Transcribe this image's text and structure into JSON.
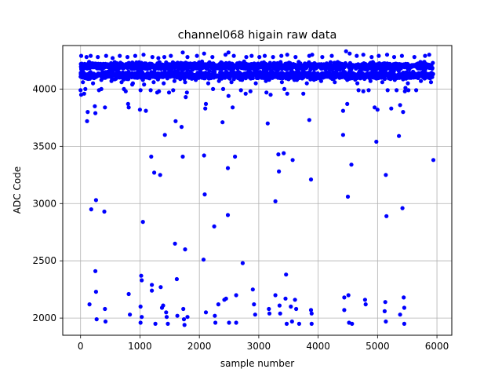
{
  "chart_data": {
    "type": "scatter",
    "title": "channel068 higain raw data",
    "xlabel": "sample number",
    "ylabel": "ADC Code",
    "xlim": [
      -300,
      6250
    ],
    "ylim": [
      1850,
      4380
    ],
    "x_ticks": [
      0,
      1000,
      2000,
      3000,
      4000,
      5000,
      6000
    ],
    "y_ticks": [
      2000,
      2500,
      3000,
      3500,
      4000
    ],
    "grid": true,
    "legend": "none",
    "colors": {
      "marker": "#0000ff",
      "grid": "#b0b0b0",
      "axes": "#000000"
    },
    "band": {
      "description": "dense cluster of samples spanning all sample numbers",
      "x_range": [
        0,
        5940
      ],
      "y_range": [
        4040,
        4300
      ],
      "centers": [
        4120,
        4200
      ]
    },
    "points": [
      [
        0,
        3990
      ],
      [
        10,
        3950
      ],
      [
        60,
        3960
      ],
      [
        80,
        4000
      ],
      [
        110,
        3720
      ],
      [
        120,
        3800
      ],
      [
        150,
        2120
      ],
      [
        180,
        2950
      ],
      [
        240,
        3850
      ],
      [
        260,
        3030
      ],
      [
        250,
        2410
      ],
      [
        260,
        2230
      ],
      [
        270,
        1990
      ],
      [
        250,
        3790
      ],
      [
        310,
        3990
      ],
      [
        350,
        4000
      ],
      [
        400,
        2930
      ],
      [
        410,
        3840
      ],
      [
        410,
        2080
      ],
      [
        420,
        1970
      ],
      [
        730,
        4000
      ],
      [
        760,
        3980
      ],
      [
        800,
        3870
      ],
      [
        810,
        3840
      ],
      [
        810,
        2210
      ],
      [
        830,
        2030
      ],
      [
        870,
        4040
      ],
      [
        1000,
        3820
      ],
      [
        1010,
        3990
      ],
      [
        1020,
        2370
      ],
      [
        1030,
        2330
      ],
      [
        1010,
        2100
      ],
      [
        1030,
        2010
      ],
      [
        1010,
        1960
      ],
      [
        1050,
        2840
      ],
      [
        1070,
        4040
      ],
      [
        1100,
        3810
      ],
      [
        1180,
        3990
      ],
      [
        1190,
        3410
      ],
      [
        1200,
        2290
      ],
      [
        1200,
        2240
      ],
      [
        1240,
        3270
      ],
      [
        1260,
        1950
      ],
      [
        1290,
        3970
      ],
      [
        1320,
        3980
      ],
      [
        1340,
        3250
      ],
      [
        1350,
        2270
      ],
      [
        1370,
        2090
      ],
      [
        1390,
        2110
      ],
      [
        1420,
        3600
      ],
      [
        1440,
        2050
      ],
      [
        1450,
        2010
      ],
      [
        1470,
        1950
      ],
      [
        1490,
        3970
      ],
      [
        1560,
        3990
      ],
      [
        1590,
        2650
      ],
      [
        1600,
        3720
      ],
      [
        1620,
        2340
      ],
      [
        1630,
        2020
      ],
      [
        1700,
        3670
      ],
      [
        1720,
        3410
      ],
      [
        1730,
        2080
      ],
      [
        1740,
        1990
      ],
      [
        1750,
        1940
      ],
      [
        1760,
        2600
      ],
      [
        1770,
        3930
      ],
      [
        1790,
        3970
      ],
      [
        1800,
        2010
      ],
      [
        2070,
        2510
      ],
      [
        2080,
        3420
      ],
      [
        2090,
        3080
      ],
      [
        2100,
        3830
      ],
      [
        2110,
        3870
      ],
      [
        2110,
        2050
      ],
      [
        2230,
        4000
      ],
      [
        2250,
        2800
      ],
      [
        2260,
        2020
      ],
      [
        2270,
        1960
      ],
      [
        2320,
        2120
      ],
      [
        2390,
        3710
      ],
      [
        2400,
        4000
      ],
      [
        2420,
        2160
      ],
      [
        2450,
        2170
      ],
      [
        2480,
        3310
      ],
      [
        2480,
        2900
      ],
      [
        2490,
        3940
      ],
      [
        2500,
        1960
      ],
      [
        2560,
        3840
      ],
      [
        2600,
        3410
      ],
      [
        2620,
        2200
      ],
      [
        2620,
        1960
      ],
      [
        2700,
        3990
      ],
      [
        2730,
        2480
      ],
      [
        2780,
        3960
      ],
      [
        2860,
        3980
      ],
      [
        2900,
        2250
      ],
      [
        2920,
        2120
      ],
      [
        2940,
        2030
      ],
      [
        3130,
        3970
      ],
      [
        3150,
        3700
      ],
      [
        3170,
        2080
      ],
      [
        3180,
        2040
      ],
      [
        3200,
        3950
      ],
      [
        3280,
        3020
      ],
      [
        3280,
        2200
      ],
      [
        3330,
        3430
      ],
      [
        3340,
        3280
      ],
      [
        3350,
        2110
      ],
      [
        3360,
        2040
      ],
      [
        3420,
        3440
      ],
      [
        3430,
        4000
      ],
      [
        3460,
        2380
      ],
      [
        3450,
        2170
      ],
      [
        3470,
        1950
      ],
      [
        3480,
        3960
      ],
      [
        3540,
        2100
      ],
      [
        3560,
        1970
      ],
      [
        3570,
        3380
      ],
      [
        3610,
        2160
      ],
      [
        3630,
        2080
      ],
      [
        3680,
        1950
      ],
      [
        3750,
        3960
      ],
      [
        3850,
        3730
      ],
      [
        3880,
        3210
      ],
      [
        3880,
        2070
      ],
      [
        3890,
        2040
      ],
      [
        3890,
        1950
      ],
      [
        4420,
        3810
      ],
      [
        4420,
        3600
      ],
      [
        4440,
        2180
      ],
      [
        4440,
        2070
      ],
      [
        4490,
        3870
      ],
      [
        4500,
        3060
      ],
      [
        4510,
        2200
      ],
      [
        4520,
        1960
      ],
      [
        4560,
        3340
      ],
      [
        4570,
        1950
      ],
      [
        4680,
        3990
      ],
      [
        4760,
        3980
      ],
      [
        4790,
        2160
      ],
      [
        4800,
        2120
      ],
      [
        4850,
        3990
      ],
      [
        4950,
        3840
      ],
      [
        4980,
        3540
      ],
      [
        5000,
        3820
      ],
      [
        5120,
        2060
      ],
      [
        5130,
        2140
      ],
      [
        5140,
        1970
      ],
      [
        5140,
        3250
      ],
      [
        5150,
        2890
      ],
      [
        5170,
        3990
      ],
      [
        5230,
        3830
      ],
      [
        5320,
        3990
      ],
      [
        5360,
        3590
      ],
      [
        5380,
        3860
      ],
      [
        5380,
        2030
      ],
      [
        5420,
        2960
      ],
      [
        5430,
        3800
      ],
      [
        5440,
        2180
      ],
      [
        5450,
        2090
      ],
      [
        5450,
        1950
      ],
      [
        5460,
        3980
      ],
      [
        5470,
        4010
      ],
      [
        5520,
        3990
      ],
      [
        5650,
        3990
      ],
      [
        5940,
        3380
      ],
      [
        40,
        4060
      ],
      [
        210,
        4050
      ],
      [
        350,
        4080
      ],
      [
        520,
        4070
      ],
      [
        690,
        4060
      ],
      [
        880,
        4050
      ],
      [
        1050,
        4080
      ],
      [
        1230,
        4060
      ],
      [
        1400,
        4050
      ],
      [
        1580,
        4070
      ],
      [
        1760,
        4060
      ],
      [
        1940,
        4080
      ],
      [
        2150,
        4050
      ],
      [
        2330,
        4070
      ],
      [
        2540,
        4060
      ],
      [
        2720,
        4080
      ],
      [
        2950,
        4050
      ],
      [
        3120,
        4070
      ],
      [
        3390,
        4060
      ],
      [
        3600,
        4080
      ],
      [
        3810,
        4050
      ],
      [
        4050,
        4070
      ],
      [
        4280,
        4060
      ],
      [
        4490,
        4080
      ],
      [
        4660,
        4050
      ],
      [
        4880,
        4070
      ],
      [
        5080,
        4060
      ],
      [
        5290,
        4080
      ],
      [
        5510,
        4050
      ],
      [
        5730,
        4070
      ],
      [
        5900,
        4060
      ],
      [
        10,
        4290
      ],
      [
        100,
        4280
      ],
      [
        170,
        4290
      ],
      [
        290,
        4280
      ],
      [
        430,
        4290
      ],
      [
        540,
        4270
      ],
      [
        660,
        4290
      ],
      [
        790,
        4280
      ],
      [
        920,
        4290
      ],
      [
        1060,
        4300
      ],
      [
        1210,
        4280
      ],
      [
        1310,
        4270
      ],
      [
        1410,
        4280
      ],
      [
        1520,
        4290
      ],
      [
        1720,
        4320
      ],
      [
        1800,
        4280
      ],
      [
        1960,
        4290
      ],
      [
        2080,
        4310
      ],
      [
        2220,
        4280
      ],
      [
        2440,
        4300
      ],
      [
        2490,
        4320
      ],
      [
        2580,
        4290
      ],
      [
        2790,
        4280
      ],
      [
        2880,
        4290
      ],
      [
        3010,
        4280
      ],
      [
        3100,
        4290
      ],
      [
        3240,
        4280
      ],
      [
        3380,
        4290
      ],
      [
        3480,
        4300
      ],
      [
        3620,
        4280
      ],
      [
        3850,
        4290
      ],
      [
        3900,
        4300
      ],
      [
        4070,
        4280
      ],
      [
        4230,
        4290
      ],
      [
        4470,
        4330
      ],
      [
        4530,
        4310
      ],
      [
        4650,
        4290
      ],
      [
        4760,
        4300
      ],
      [
        4900,
        4280
      ],
      [
        5020,
        4290
      ],
      [
        5160,
        4300
      ],
      [
        5280,
        4280
      ],
      [
        5410,
        4290
      ],
      [
        5620,
        4280
      ],
      [
        5800,
        4290
      ],
      [
        5870,
        4300
      ]
    ]
  }
}
